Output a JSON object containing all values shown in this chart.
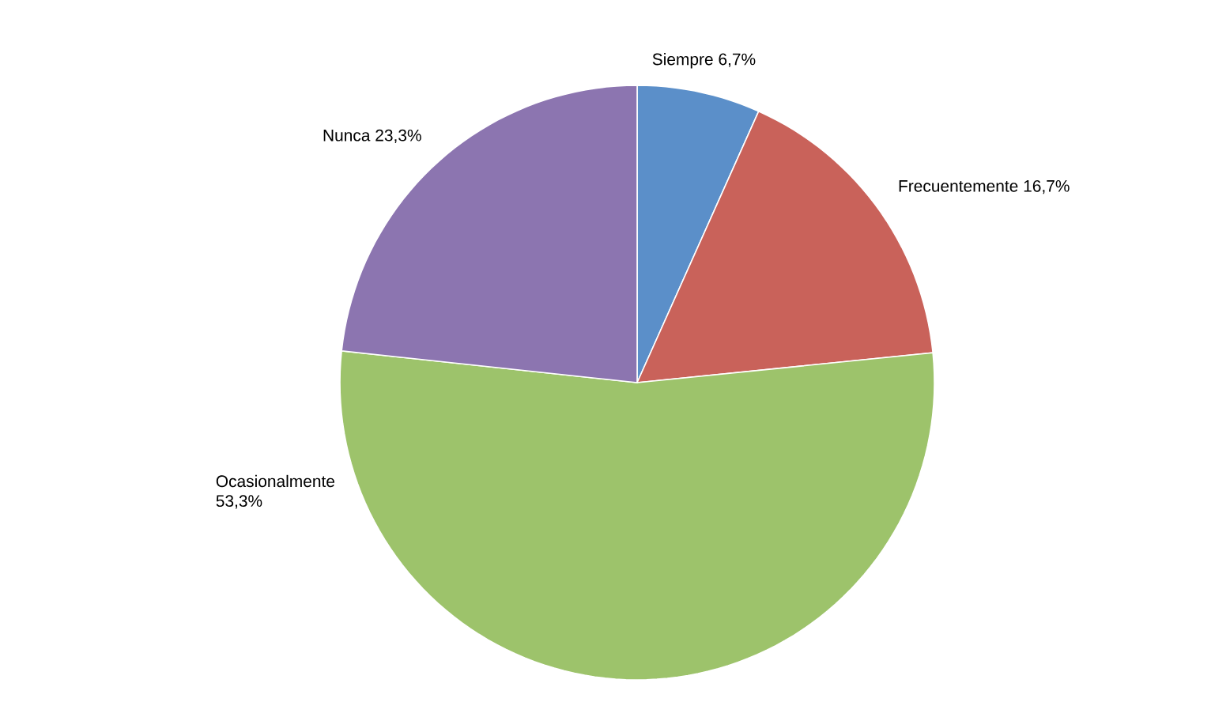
{
  "chart_data": {
    "type": "pie",
    "categories": [
      "Siempre",
      "Frecuentemente",
      "Ocasionalmente",
      "Nunca"
    ],
    "values": [
      6.7,
      16.7,
      53.3,
      23.3
    ],
    "value_labels": [
      "6,7%",
      "16,7%",
      "53,3%",
      "23,3%"
    ],
    "colors": [
      "#5b8fc9",
      "#c9625a",
      "#9dc36b",
      "#8c75b0"
    ]
  }
}
